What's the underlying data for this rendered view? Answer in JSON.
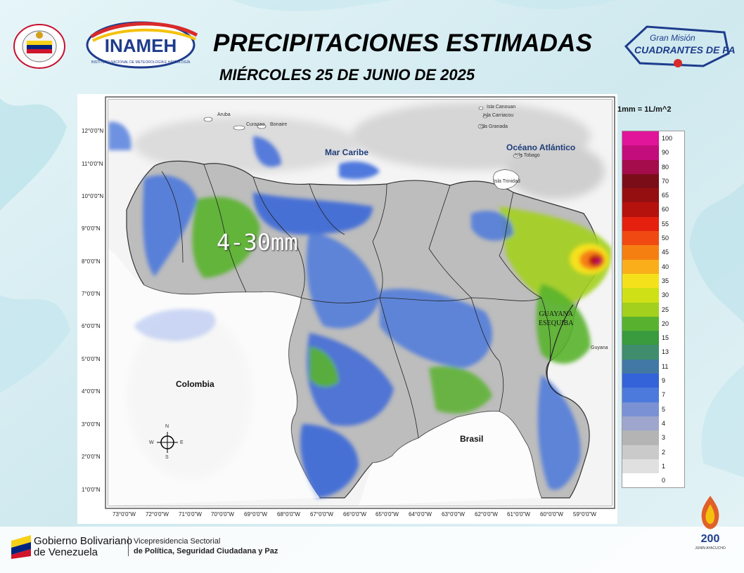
{
  "header": {
    "title": "PRECIPITACIONES ESTIMADAS",
    "subtitle": "MIÉRCOLES 25 DE JUNIO DE 2025",
    "logo_left_1": "Ministerio del Poder Popular para Relaciones Interiores, Justicia y Paz",
    "logo_left_2": "INAMEH",
    "logo_right": "Gran Misión CUADRANTES DE PAZ"
  },
  "map": {
    "annotation": "4-30mm",
    "labels": {
      "mar_caribe": "Mar Caribe",
      "oceano_atlantico": "Océano Atlántico",
      "colombia": "Colombia",
      "brasil": "Brasil",
      "guyana": "Guyana",
      "guayana_1": "GUAYANA",
      "guayana_2": "ESEQUIBA"
    },
    "islands": {
      "aruba": "Aruba",
      "curazao": "Curazao",
      "bonaire": "Bonaire",
      "canouan": "Isla Canouan",
      "carriacou": "Isla Carriacou",
      "granada": "Isla Granada",
      "tobago": "Isla Tobago",
      "trinidad": "Isla Trinidad"
    },
    "lat_ticks": [
      "12°0'0\"N",
      "11°0'0\"N",
      "10°0'0\"N",
      "9°0'0\"N",
      "8°0'0\"N",
      "7°0'0\"N",
      "6°0'0\"N",
      "5°0'0\"N",
      "4°0'0\"N",
      "3°0'0\"N",
      "2°0'0\"N",
      "1°0'0\"N"
    ],
    "lon_ticks": [
      "73°0'0\"W",
      "72°0'0\"W",
      "71°0'0\"W",
      "70°0'0\"W",
      "69°0'0\"W",
      "68°0'0\"W",
      "67°0'0\"W",
      "66°0'0\"W",
      "65°0'0\"W",
      "64°0'0\"W",
      "63°0'0\"W",
      "62°0'0\"W",
      "61°0'0\"W",
      "60°0'0\"W",
      "59°0'0\"W"
    ],
    "compass": {
      "n": "N",
      "s": "S",
      "e": "E",
      "w": "W"
    }
  },
  "legend": {
    "unit": "1mm = 1L/m^2",
    "steps": [
      {
        "label": "100",
        "color": "#e0159a"
      },
      {
        "label": "90",
        "color": "#c30d7c"
      },
      {
        "label": "80",
        "color": "#a40c4c"
      },
      {
        "label": "70",
        "color": "#7b0d18"
      },
      {
        "label": "65",
        "color": "#950f10"
      },
      {
        "label": "60",
        "color": "#b5110d"
      },
      {
        "label": "55",
        "color": "#e6200f"
      },
      {
        "label": "50",
        "color": "#f04a12"
      },
      {
        "label": "45",
        "color": "#f67f12"
      },
      {
        "label": "40",
        "color": "#f9ae1a"
      },
      {
        "label": "35",
        "color": "#f5e11b"
      },
      {
        "label": "30",
        "color": "#cfe116"
      },
      {
        "label": "25",
        "color": "#a3d01d"
      },
      {
        "label": "20",
        "color": "#59b22f"
      },
      {
        "label": "15",
        "color": "#3a9a3e"
      },
      {
        "label": "13",
        "color": "#3f8d6c"
      },
      {
        "label": "11",
        "color": "#4278a4"
      },
      {
        "label": "9",
        "color": "#3463d9"
      },
      {
        "label": "7",
        "color": "#4c79dc"
      },
      {
        "label": "5",
        "color": "#7a92d4"
      },
      {
        "label": "4",
        "color": "#9ea6cd"
      },
      {
        "label": "3",
        "color": "#b4b4b4"
      },
      {
        "label": "2",
        "color": "#cacaca"
      },
      {
        "label": "1",
        "color": "#e0e0e0"
      },
      {
        "label": "0",
        "color": "#ffffff"
      }
    ]
  },
  "footer": {
    "gob_line1": "Gobierno Bolivariano",
    "gob_line2": "de Venezuela",
    "vice_line1": "Vicepresidencia Sectorial",
    "vice_line2": "de Política, Seguridad Ciudadana y Paz",
    "logo_200": "200 AÑOS BATALLA DE JUNÍN AYACUCHO"
  }
}
